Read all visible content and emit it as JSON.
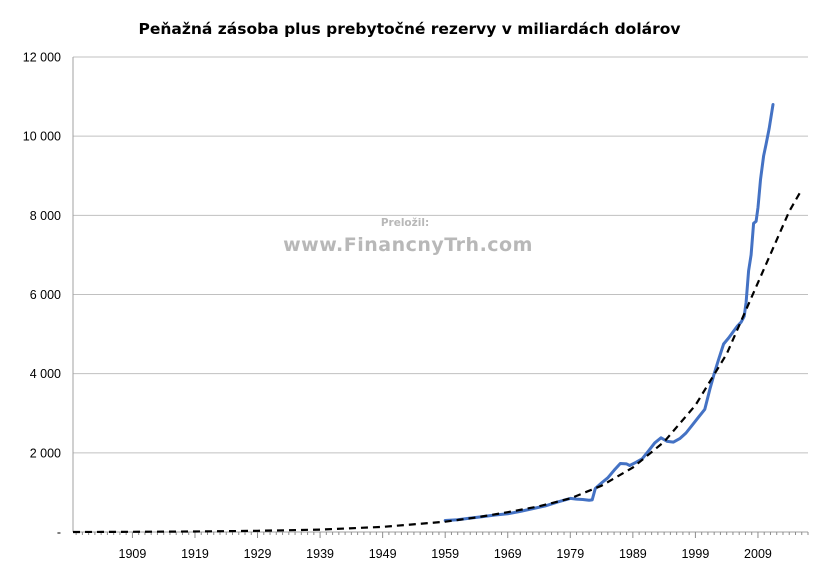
{
  "chart_data": {
    "type": "line",
    "title": "Peňažná zásoba plus prebytočné rezervy v miliardách dolárov",
    "xlabel": "",
    "ylabel": "",
    "xlim": [
      1899.5,
      2017
    ],
    "ylim": [
      0,
      12000
    ],
    "grid": true,
    "legend": "none",
    "y_ticks": [
      {
        "value": 0,
        "label": "-"
      },
      {
        "value": 2000,
        "label": "2 000"
      },
      {
        "value": 4000,
        "label": "4 000"
      },
      {
        "value": 6000,
        "label": "6 000"
      },
      {
        "value": 8000,
        "label": "8 000"
      },
      {
        "value": 10000,
        "label": "10 000"
      },
      {
        "value": 12000,
        "label": "12 000"
      }
    ],
    "x_ticks": [
      {
        "value": 1909,
        "label": "1909"
      },
      {
        "value": 1919,
        "label": "1919"
      },
      {
        "value": 1929,
        "label": "1929"
      },
      {
        "value": 1939,
        "label": "1939"
      },
      {
        "value": 1949,
        "label": "1949"
      },
      {
        "value": 1959,
        "label": "1959"
      },
      {
        "value": 1969,
        "label": "1969"
      },
      {
        "value": 1979,
        "label": "1979"
      },
      {
        "value": 1989,
        "label": "1989"
      },
      {
        "value": 1999,
        "label": "1999"
      },
      {
        "value": 2009,
        "label": "2009"
      }
    ],
    "series": [
      {
        "style": "solid",
        "color": "#4472c4",
        "points": [
          [
            1959.0,
            290
          ],
          [
            1961.0,
            310
          ],
          [
            1963.0,
            350
          ],
          [
            1965.0,
            390
          ],
          [
            1967.0,
            430
          ],
          [
            1969.0,
            460
          ],
          [
            1971.0,
            520
          ],
          [
            1973.0,
            590
          ],
          [
            1975.0,
            660
          ],
          [
            1977.0,
            760
          ],
          [
            1979.0,
            850
          ],
          [
            1980.0,
            830
          ],
          [
            1981.0,
            820
          ],
          [
            1982.0,
            800
          ],
          [
            1982.5,
            810
          ],
          [
            1983.0,
            1100
          ],
          [
            1984.0,
            1240
          ],
          [
            1985.0,
            1370
          ],
          [
            1986.0,
            1560
          ],
          [
            1987.0,
            1730
          ],
          [
            1988.0,
            1720
          ],
          [
            1988.5,
            1680
          ],
          [
            1989.5,
            1760
          ],
          [
            1990.5,
            1850
          ],
          [
            1991.5,
            2050
          ],
          [
            1992.5,
            2250
          ],
          [
            1993.5,
            2380
          ],
          [
            1994.5,
            2290
          ],
          [
            1995.5,
            2270
          ],
          [
            1996.5,
            2360
          ],
          [
            1997.5,
            2500
          ],
          [
            1998.5,
            2700
          ],
          [
            1999.5,
            2900
          ],
          [
            2000.5,
            3100
          ],
          [
            2001.3,
            3600
          ],
          [
            2002.0,
            4000
          ],
          [
            2002.7,
            4350
          ],
          [
            2003.5,
            4750
          ],
          [
            2004.3,
            4900
          ],
          [
            2005.0,
            5050
          ],
          [
            2005.7,
            5200
          ],
          [
            2006.3,
            5300
          ],
          [
            2006.8,
            5450
          ],
          [
            2007.1,
            5800
          ],
          [
            2007.5,
            6600
          ],
          [
            2007.9,
            7000
          ],
          [
            2008.3,
            7800
          ],
          [
            2008.7,
            7850
          ],
          [
            2009.0,
            8200
          ],
          [
            2009.4,
            8900
          ],
          [
            2009.9,
            9500
          ],
          [
            2010.3,
            9800
          ],
          [
            2010.8,
            10200
          ],
          [
            2011.4,
            10800
          ]
        ]
      },
      {
        "style": "dashed",
        "color": "#000000",
        "points": [
          [
            1899.5,
            0
          ],
          [
            1909,
            5
          ],
          [
            1919,
            12
          ],
          [
            1929,
            30
          ],
          [
            1939,
            60
          ],
          [
            1949,
            130
          ],
          [
            1959,
            260
          ],
          [
            1964,
            370
          ],
          [
            1969,
            500
          ],
          [
            1974,
            650
          ],
          [
            1979,
            850
          ],
          [
            1984,
            1170
          ],
          [
            1989,
            1630
          ],
          [
            1994,
            2280
          ],
          [
            1999,
            3200
          ],
          [
            2004,
            4500
          ],
          [
            2009,
            6300
          ],
          [
            2014,
            8100
          ],
          [
            2016,
            8650
          ]
        ]
      }
    ]
  },
  "credit": {
    "label": "Preložil:",
    "url": "www.FinancnyTrh.com"
  }
}
